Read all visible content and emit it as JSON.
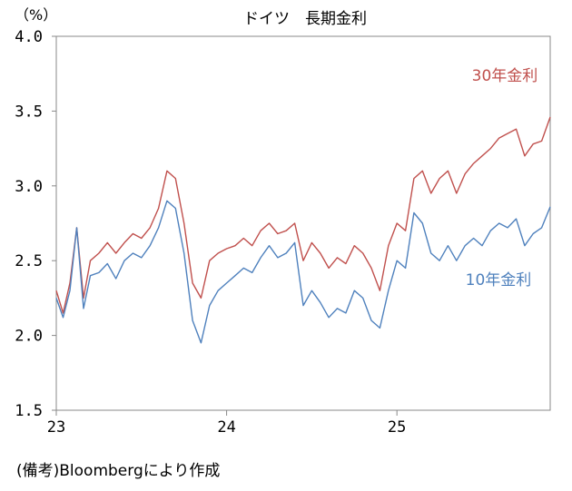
{
  "chart_data": {
    "type": "line",
    "title": "ドイツ　長期金利",
    "unit_label": "（%）",
    "ylim": [
      1.5,
      4.0
    ],
    "y_ticks": [
      "4.0",
      "3.5",
      "3.0",
      "2.5",
      "2.0",
      "1.5"
    ],
    "y_tick_values": [
      4.0,
      3.5,
      3.0,
      2.5,
      2.0,
      1.5
    ],
    "xlim": [
      2023.0,
      2025.9
    ],
    "x_ticks": [
      "23",
      "24",
      "25"
    ],
    "x_tick_values": [
      2023.0,
      2024.0,
      2025.0
    ],
    "grid": false,
    "series": [
      {
        "name": "30年金利",
        "color": "#c0504d",
        "x": [
          2023.0,
          2023.04,
          2023.08,
          2023.12,
          2023.16,
          2023.2,
          2023.25,
          2023.3,
          2023.35,
          2023.4,
          2023.45,
          2023.5,
          2023.55,
          2023.6,
          2023.65,
          2023.7,
          2023.75,
          2023.8,
          2023.85,
          2023.9,
          2023.95,
          2024.0,
          2024.05,
          2024.1,
          2024.15,
          2024.2,
          2024.25,
          2024.3,
          2024.35,
          2024.4,
          2024.45,
          2024.5,
          2024.55,
          2024.6,
          2024.65,
          2024.7,
          2024.75,
          2024.8,
          2024.85,
          2024.9,
          2024.95,
          2025.0,
          2025.05,
          2025.1,
          2025.15,
          2025.2,
          2025.25,
          2025.3,
          2025.35,
          2025.4,
          2025.45,
          2025.5,
          2025.55,
          2025.6,
          2025.65,
          2025.7,
          2025.75,
          2025.8,
          2025.85,
          2025.9
        ],
        "values": [
          2.3,
          2.15,
          2.35,
          2.72,
          2.25,
          2.5,
          2.55,
          2.62,
          2.55,
          2.62,
          2.68,
          2.65,
          2.72,
          2.85,
          3.1,
          3.05,
          2.75,
          2.35,
          2.25,
          2.5,
          2.55,
          2.58,
          2.6,
          2.65,
          2.6,
          2.7,
          2.75,
          2.68,
          2.7,
          2.75,
          2.5,
          2.62,
          2.55,
          2.45,
          2.52,
          2.48,
          2.6,
          2.55,
          2.45,
          2.3,
          2.6,
          2.75,
          2.7,
          3.05,
          3.1,
          2.95,
          3.05,
          3.1,
          2.95,
          3.08,
          3.15,
          3.2,
          3.25,
          3.32,
          3.35,
          3.38,
          3.2,
          3.28,
          3.3,
          3.46
        ]
      },
      {
        "name": "10年金利",
        "color": "#4f81bd",
        "x": [
          2023.0,
          2023.04,
          2023.08,
          2023.12,
          2023.16,
          2023.2,
          2023.25,
          2023.3,
          2023.35,
          2023.4,
          2023.45,
          2023.5,
          2023.55,
          2023.6,
          2023.65,
          2023.7,
          2023.75,
          2023.8,
          2023.85,
          2023.9,
          2023.95,
          2024.0,
          2024.05,
          2024.1,
          2024.15,
          2024.2,
          2024.25,
          2024.3,
          2024.35,
          2024.4,
          2024.45,
          2024.5,
          2024.55,
          2024.6,
          2024.65,
          2024.7,
          2024.75,
          2024.8,
          2024.85,
          2024.9,
          2024.95,
          2025.0,
          2025.05,
          2025.1,
          2025.15,
          2025.2,
          2025.25,
          2025.3,
          2025.35,
          2025.4,
          2025.45,
          2025.5,
          2025.55,
          2025.6,
          2025.65,
          2025.7,
          2025.75,
          2025.8,
          2025.85,
          2025.9
        ],
        "values": [
          2.25,
          2.12,
          2.3,
          2.72,
          2.18,
          2.4,
          2.42,
          2.48,
          2.38,
          2.5,
          2.55,
          2.52,
          2.6,
          2.72,
          2.9,
          2.85,
          2.55,
          2.1,
          1.95,
          2.2,
          2.3,
          2.35,
          2.4,
          2.45,
          2.42,
          2.52,
          2.6,
          2.52,
          2.55,
          2.62,
          2.2,
          2.3,
          2.22,
          2.12,
          2.18,
          2.15,
          2.3,
          2.25,
          2.1,
          2.05,
          2.3,
          2.5,
          2.45,
          2.82,
          2.75,
          2.55,
          2.5,
          2.6,
          2.5,
          2.6,
          2.65,
          2.6,
          2.7,
          2.75,
          2.72,
          2.78,
          2.6,
          2.68,
          2.72,
          2.86
        ]
      }
    ]
  },
  "source_note": "(備考)Bloombergにより作成"
}
